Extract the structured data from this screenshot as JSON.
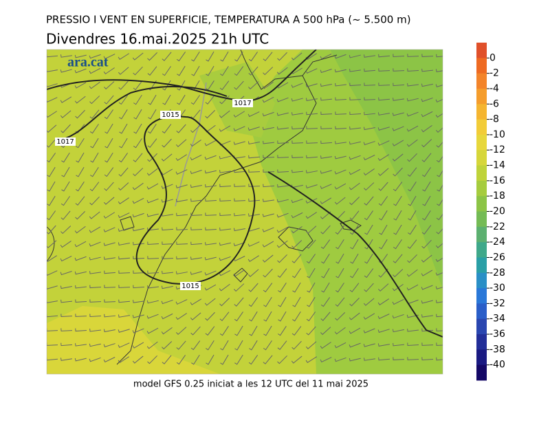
{
  "header": {
    "title": "PRESSIO I VENT EN SUPERFICIE, TEMPERATURA A 500 hPa (~ 5.500 m)",
    "subtitle": "Divendres  16.mai.2025 21h UTC"
  },
  "logo": "ara.cat",
  "isobar_labels": [
    1017,
    1017,
    1015,
    1015
  ],
  "footer": "model GFS 0.25 iniciat a les 12 UTC del 11 mai 2025",
  "colorbar": {
    "ticks": [
      0,
      -2,
      -4,
      -6,
      -8,
      -10,
      -12,
      -14,
      -16,
      -18,
      -20,
      -22,
      -24,
      -26,
      -28,
      -30,
      -32,
      -34,
      -36,
      -38,
      -40
    ],
    "colors": [
      "#e0502a",
      "#ee6a22",
      "#f3842a",
      "#f59d2c",
      "#f5b530",
      "#f2cc38",
      "#e7d73c",
      "#d6d63a",
      "#bfd33a",
      "#a6cc3e",
      "#8cc446",
      "#74bb55",
      "#5cb070",
      "#3fa88a",
      "#2a9fa6",
      "#2a8fc6",
      "#2a78d8",
      "#2a5ec8",
      "#2a46b0",
      "#222e98",
      "#1a1a82",
      "#140866"
    ]
  }
}
